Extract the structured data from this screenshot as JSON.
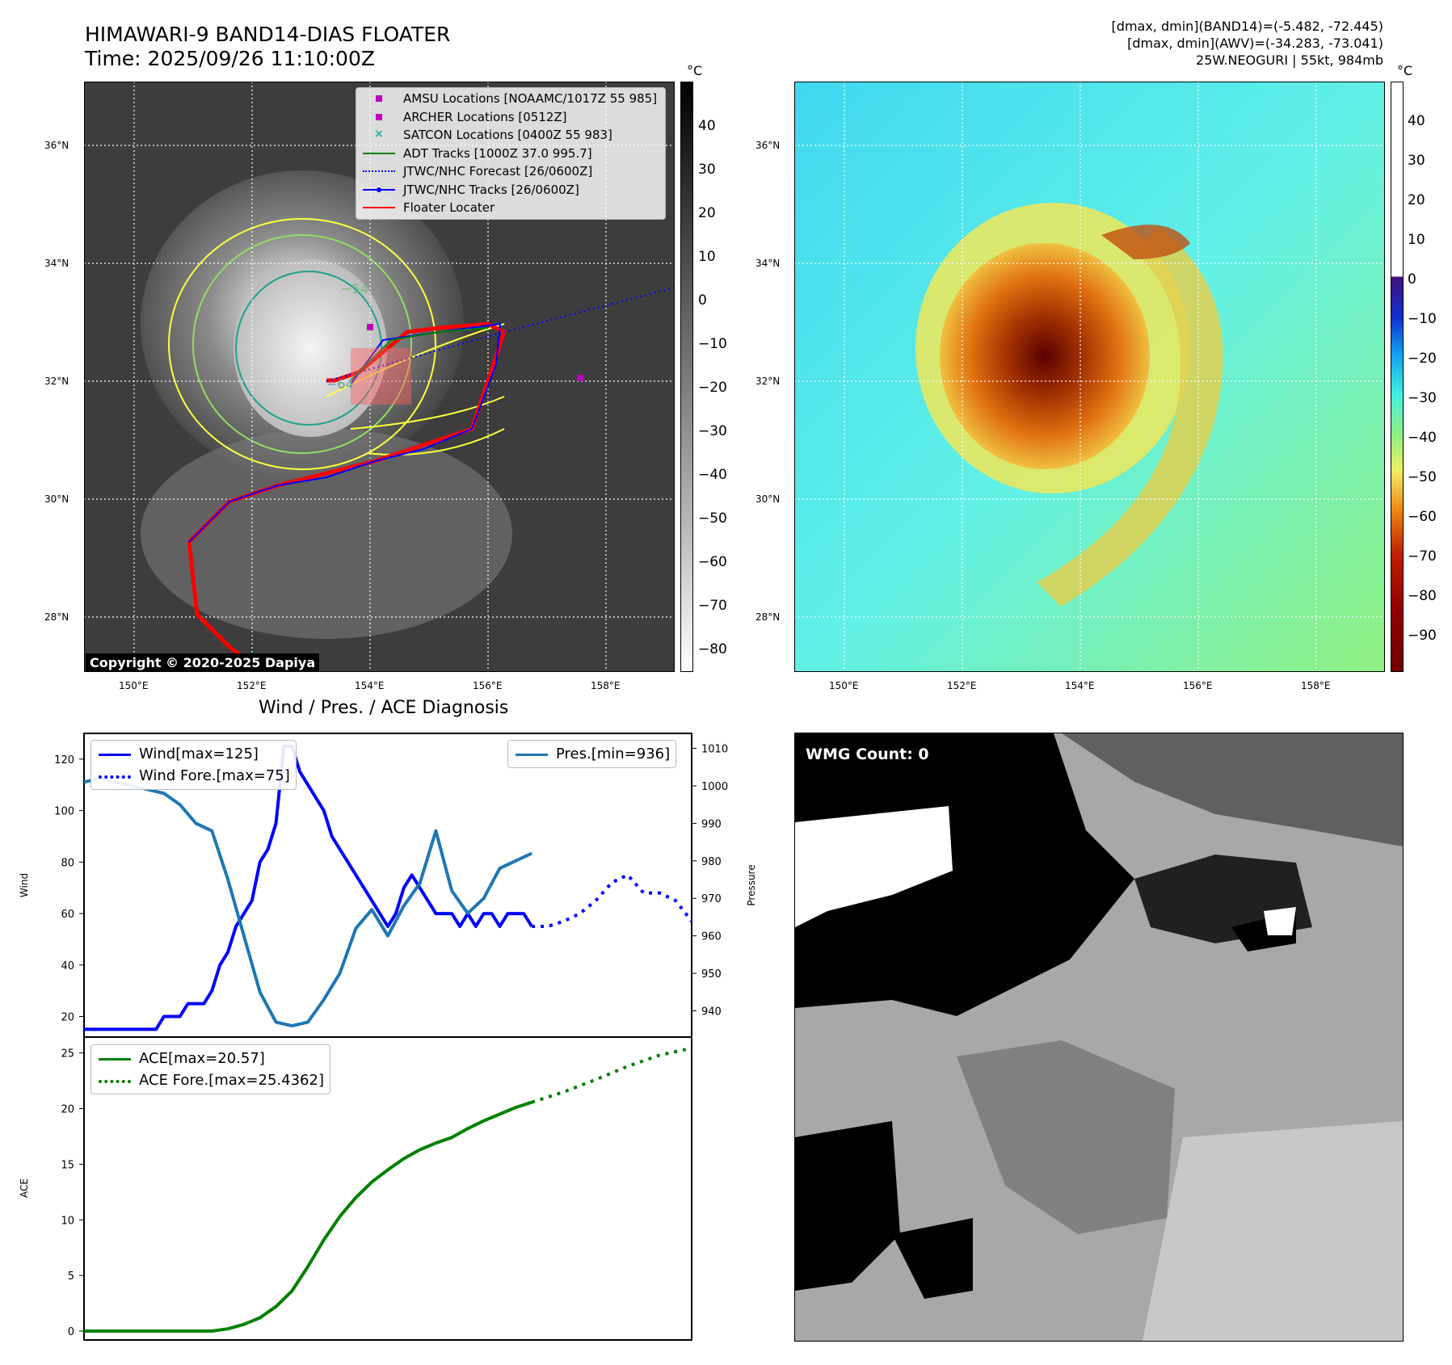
{
  "header": {
    "title_line1": "HIMAWARI-9 BAND14-DIAS FLOATER",
    "title_line2": "Time: 2025/09/26 11:10:00Z",
    "info_line1": "[dmax, dmin](BAND14)=(-5.482, -72.445)",
    "info_line2": "[dmax, dmin](AWV)=(-34.283, -73.041)",
    "info_line3": "25W.NEOGURI | 55kt, 984mb"
  },
  "map_axes": {
    "lat_labels": [
      "36°N",
      "34°N",
      "32°N",
      "30°N",
      "28°N"
    ],
    "lon_labels": [
      "150°E",
      "152°E",
      "154°E",
      "156°E",
      "158°E"
    ]
  },
  "ir_panel": {
    "colorbar_unit": "°C",
    "colorbar_ticks": [
      "40",
      "30",
      "20",
      "10",
      "0",
      "−10",
      "−20",
      "−30",
      "−40",
      "−50",
      "−60",
      "−70",
      "−80"
    ],
    "contour_labels": [
      "−54",
      "−64"
    ],
    "copyright": "Copyright © 2020-2025 Dapiya",
    "legend": [
      {
        "label": "AMSU Locations [NOAAMC/1017Z 55 985]",
        "color": "#c000c0",
        "marker": "square"
      },
      {
        "label": "ARCHER Locations [0512Z]",
        "color": "#c000c0",
        "marker": "square"
      },
      {
        "label": "SATCON Locations [0400Z 55 983]",
        "color": "#20b0b0",
        "marker": "x"
      },
      {
        "label": "ADT Tracks [1000Z 37.0 995.7]",
        "color": "#008000",
        "marker": "line"
      },
      {
        "label": "JTWC/NHC Forecast [26/0600Z]",
        "color": "#0000ff",
        "marker": "dotted"
      },
      {
        "label": "JTWC/NHC Tracks [26/0600Z]",
        "color": "#0000ff",
        "marker": "line-dot"
      },
      {
        "label": "Floater Locater",
        "color": "#ff0000",
        "marker": "line"
      }
    ]
  },
  "awv_panel": {
    "colorbar_unit": "°C",
    "colorbar_ticks": [
      "40",
      "30",
      "20",
      "10",
      "0",
      "−10",
      "−20",
      "−30",
      "−40",
      "−50",
      "−60",
      "−70",
      "−80",
      "−90"
    ]
  },
  "wmg_panel": {
    "label": "WMG Count: 0"
  },
  "colors": {
    "wind": "#0000ff",
    "pressure": "#1f77b4",
    "ace": "#008000",
    "floater": "#ff0000"
  },
  "chart_data": [
    {
      "type": "line",
      "title": "Wind / Pres. / ACE Diagnosis",
      "ylabel": "Wind",
      "ylabel_right": "Pressure",
      "ylim": [
        12,
        130
      ],
      "ylim_right": [
        933,
        1014
      ],
      "yticks": [
        20,
        40,
        60,
        80,
        100,
        120
      ],
      "yticks_right": [
        940,
        950,
        960,
        970,
        980,
        990,
        1000,
        1010
      ],
      "series": [
        {
          "name": "Wind[max=125]",
          "axis": "left",
          "style": "solid",
          "x": [
            0,
            1,
            2,
            3,
            4,
            5,
            6,
            7,
            8,
            9,
            10,
            11,
            12,
            13,
            14,
            15,
            16,
            17,
            18,
            19,
            20,
            21,
            22,
            23,
            24,
            25,
            26,
            27,
            28,
            29,
            30,
            31,
            32,
            33,
            34,
            35,
            36,
            37,
            38,
            39,
            40,
            41,
            42,
            43,
            44,
            45,
            46,
            47,
            48,
            49,
            50,
            51,
            52,
            53,
            54,
            55,
            56
          ],
          "values": [
            15,
            15,
            15,
            15,
            15,
            15,
            15,
            15,
            15,
            15,
            20,
            20,
            20,
            25,
            25,
            25,
            30,
            40,
            45,
            55,
            60,
            65,
            80,
            85,
            95,
            125,
            125,
            115,
            110,
            105,
            100,
            90,
            85,
            80,
            75,
            70,
            65,
            60,
            55,
            60,
            70,
            75,
            70,
            65,
            60,
            60,
            60,
            55,
            60,
            55,
            60,
            60,
            55,
            60,
            60,
            60,
            55
          ]
        },
        {
          "name": "Wind Fore.[max=75]",
          "axis": "left",
          "style": "dotted",
          "x": [
            56,
            58,
            60,
            62,
            64,
            66,
            68,
            70,
            72,
            74,
            76
          ],
          "values": [
            55,
            55,
            57,
            60,
            65,
            72,
            75,
            68,
            68,
            65,
            57
          ]
        },
        {
          "name": "Pres.[min=936]",
          "axis": "right",
          "style": "solid",
          "x": [
            0,
            2,
            4,
            6,
            8,
            10,
            12,
            14,
            16,
            18,
            20,
            22,
            24,
            26,
            28,
            30,
            32,
            34,
            36,
            38,
            40,
            42,
            44,
            46,
            48,
            50,
            52,
            54,
            56
          ],
          "values": [
            1001,
            1002,
            1001,
            1000,
            999,
            998,
            995,
            990,
            988,
            975,
            960,
            945,
            937,
            936,
            937,
            943,
            950,
            962,
            967,
            960,
            968,
            974,
            988,
            972,
            966,
            970,
            978,
            980,
            982
          ]
        }
      ]
    },
    {
      "type": "line",
      "ylabel": "ACE",
      "ylim": [
        -0.8,
        26.5
      ],
      "yticks": [
        0,
        5,
        10,
        15,
        20,
        25
      ],
      "series": [
        {
          "name": "ACE[max=20.57]",
          "style": "solid",
          "x": [
            0,
            4,
            8,
            12,
            16,
            18,
            20,
            22,
            24,
            26,
            28,
            30,
            32,
            34,
            36,
            38,
            40,
            42,
            44,
            46,
            48,
            50,
            52,
            54,
            56
          ],
          "values": [
            0,
            0,
            0,
            0,
            0,
            0.2,
            0.6,
            1.2,
            2.2,
            3.6,
            5.8,
            8.2,
            10.3,
            12,
            13.4,
            14.5,
            15.5,
            16.3,
            16.9,
            17.4,
            18.2,
            18.9,
            19.5,
            20.1,
            20.57
          ]
        },
        {
          "name": "ACE Fore.[max=25.4362]",
          "style": "dotted",
          "x": [
            56,
            60,
            64,
            68,
            72,
            76
          ],
          "values": [
            20.57,
            21.5,
            22.6,
            23.8,
            24.8,
            25.4362
          ]
        }
      ]
    }
  ]
}
